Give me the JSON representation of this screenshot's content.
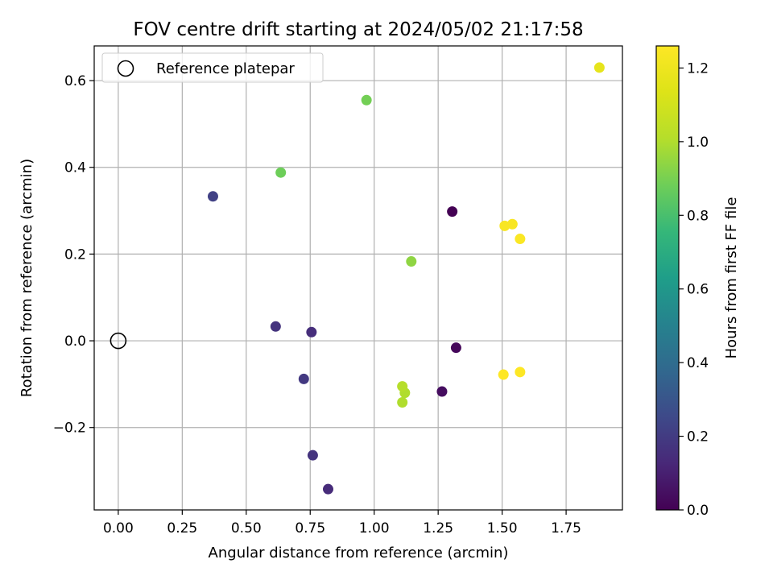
{
  "chart_data": {
    "type": "scatter",
    "title": "FOV centre drift starting at 2024/05/02 21:17:58",
    "xlabel": "Angular distance from reference (arcmin)",
    "ylabel": "Rotation from reference (arcmin)",
    "xlim": [
      -0.094,
      1.97
    ],
    "ylim": [
      -0.39,
      0.68
    ],
    "xticks": [
      0.0,
      0.25,
      0.5,
      0.75,
      1.0,
      1.25,
      1.5,
      1.75
    ],
    "xtick_labels": [
      "0.00",
      "0.25",
      "0.50",
      "0.75",
      "1.00",
      "1.25",
      "1.50",
      "1.75"
    ],
    "yticks": [
      -0.2,
      0.0,
      0.2,
      0.4,
      0.6
    ],
    "ytick_labels": [
      "−0.2",
      "0.0",
      "0.2",
      "0.4",
      "0.6"
    ],
    "grid": true,
    "legend": {
      "placement": "top-left",
      "entries": [
        "Reference platepar"
      ]
    },
    "reference_point": {
      "x": 0.0,
      "y": 0.0,
      "label": "Reference platepar"
    },
    "colorbar": {
      "label": "Hours from first FF file",
      "range": [
        0.0,
        1.26
      ],
      "ticks": [
        0.0,
        0.2,
        0.4,
        0.6,
        0.8,
        1.0,
        1.2
      ],
      "tick_labels": [
        "0.0",
        "0.2",
        "0.4",
        "0.6",
        "0.8",
        "1.0",
        "1.2"
      ],
      "colormap": "viridis"
    },
    "points": [
      {
        "x": 1.305,
        "y": 0.298,
        "hours": 0.0
      },
      {
        "x": 1.32,
        "y": -0.016,
        "hours": 0.02
      },
      {
        "x": 1.265,
        "y": -0.117,
        "hours": 0.04
      },
      {
        "x": 0.82,
        "y": -0.342,
        "hours": 0.14
      },
      {
        "x": 0.755,
        "y": 0.02,
        "hours": 0.15
      },
      {
        "x": 0.76,
        "y": -0.264,
        "hours": 0.17
      },
      {
        "x": 0.615,
        "y": 0.033,
        "hours": 0.17
      },
      {
        "x": 0.725,
        "y": -0.088,
        "hours": 0.19
      },
      {
        "x": 0.37,
        "y": 0.333,
        "hours": 0.22
      },
      {
        "x": 0.635,
        "y": 0.388,
        "hours": 0.88
      },
      {
        "x": 0.97,
        "y": 0.555,
        "hours": 0.89
      },
      {
        "x": 1.145,
        "y": 0.183,
        "hours": 0.94
      },
      {
        "x": 1.11,
        "y": -0.142,
        "hours": 1.0
      },
      {
        "x": 1.12,
        "y": -0.12,
        "hours": 1.0
      },
      {
        "x": 1.11,
        "y": -0.105,
        "hours": 1.01
      },
      {
        "x": 1.88,
        "y": 0.63,
        "hours": 1.17
      },
      {
        "x": 1.51,
        "y": 0.265,
        "hours": 1.24
      },
      {
        "x": 1.54,
        "y": 0.269,
        "hours": 1.24
      },
      {
        "x": 1.57,
        "y": 0.235,
        "hours": 1.25
      },
      {
        "x": 1.505,
        "y": -0.078,
        "hours": 1.26
      },
      {
        "x": 1.57,
        "y": -0.072,
        "hours": 1.26
      }
    ]
  }
}
